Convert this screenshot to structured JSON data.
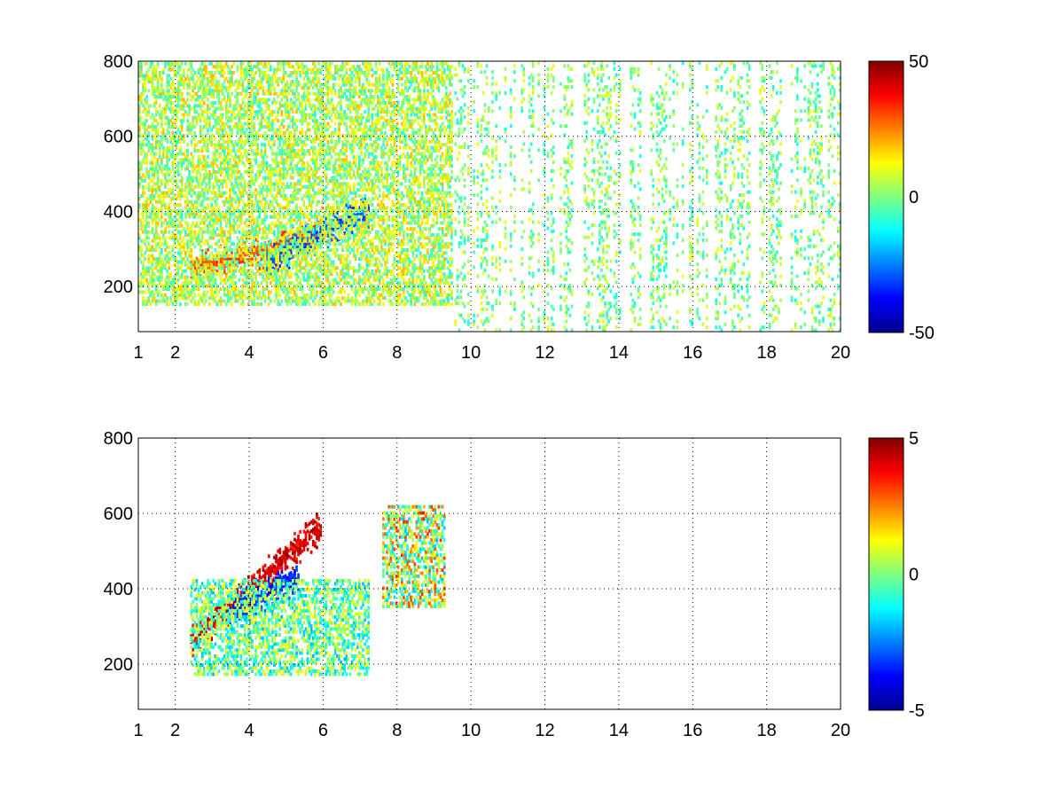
{
  "chart_data": [
    {
      "type": "heatmap",
      "title": "",
      "xlabel": "",
      "ylabel": "",
      "xlim": [
        1,
        20
      ],
      "ylim": [
        80,
        800
      ],
      "x_ticks": [
        1,
        2,
        4,
        6,
        8,
        10,
        12,
        14,
        16,
        18,
        20
      ],
      "y_ticks": [
        200,
        400,
        600,
        800
      ],
      "grid": true,
      "colormap": "jet",
      "colorbar": {
        "min": -50,
        "max": 50,
        "ticks": [
          -50,
          0,
          50
        ],
        "placement": "right"
      },
      "features": [
        {
          "description": "warm band",
          "x_range": [
            2.4,
            5.8
          ],
          "y_center_start": 240,
          "y_center_end": 330,
          "value": 35
        },
        {
          "description": "cold band",
          "x_range": [
            4.4,
            7.2
          ],
          "y_center_start": 260,
          "y_center_end": 400,
          "value": -35
        },
        {
          "description": "noisy mid values",
          "x_range": [
            1,
            9.5
          ],
          "y_range": [
            150,
            800
          ],
          "value_range": [
            -10,
            20
          ]
        },
        {
          "description": "sparse columns",
          "x_range": [
            9.5,
            20
          ],
          "y_range": [
            80,
            800
          ],
          "value_range": [
            -12,
            12
          ]
        }
      ]
    },
    {
      "type": "heatmap",
      "title": "",
      "xlabel": "",
      "ylabel": "",
      "xlim": [
        1,
        20
      ],
      "ylim": [
        80,
        800
      ],
      "x_ticks": [
        1,
        2,
        4,
        6,
        8,
        10,
        12,
        14,
        16,
        18,
        20
      ],
      "y_ticks": [
        200,
        400,
        600,
        800
      ],
      "grid": true,
      "colormap": "jet",
      "colorbar": {
        "min": -5,
        "max": 5,
        "ticks": [
          -5,
          0,
          5
        ],
        "placement": "right"
      },
      "features": [
        {
          "description": "strong positive ridge",
          "x_range": [
            2.4,
            5.9
          ],
          "y_center_start": 260,
          "y_center_end": 560,
          "value": 4.8
        },
        {
          "description": "negative streak",
          "x_range": [
            3.4,
            5.3
          ],
          "y_center_start": 330,
          "y_center_end": 430,
          "value": -4
        },
        {
          "description": "weak background",
          "x_range": [
            2.4,
            7.2
          ],
          "y_range": [
            170,
            420
          ],
          "value_range": [
            -2,
            1.5
          ]
        },
        {
          "description": "isolated cluster",
          "x_range": [
            7.6,
            9.3
          ],
          "y_range": [
            350,
            620
          ],
          "value_range": [
            -2,
            3.5
          ]
        }
      ]
    }
  ]
}
